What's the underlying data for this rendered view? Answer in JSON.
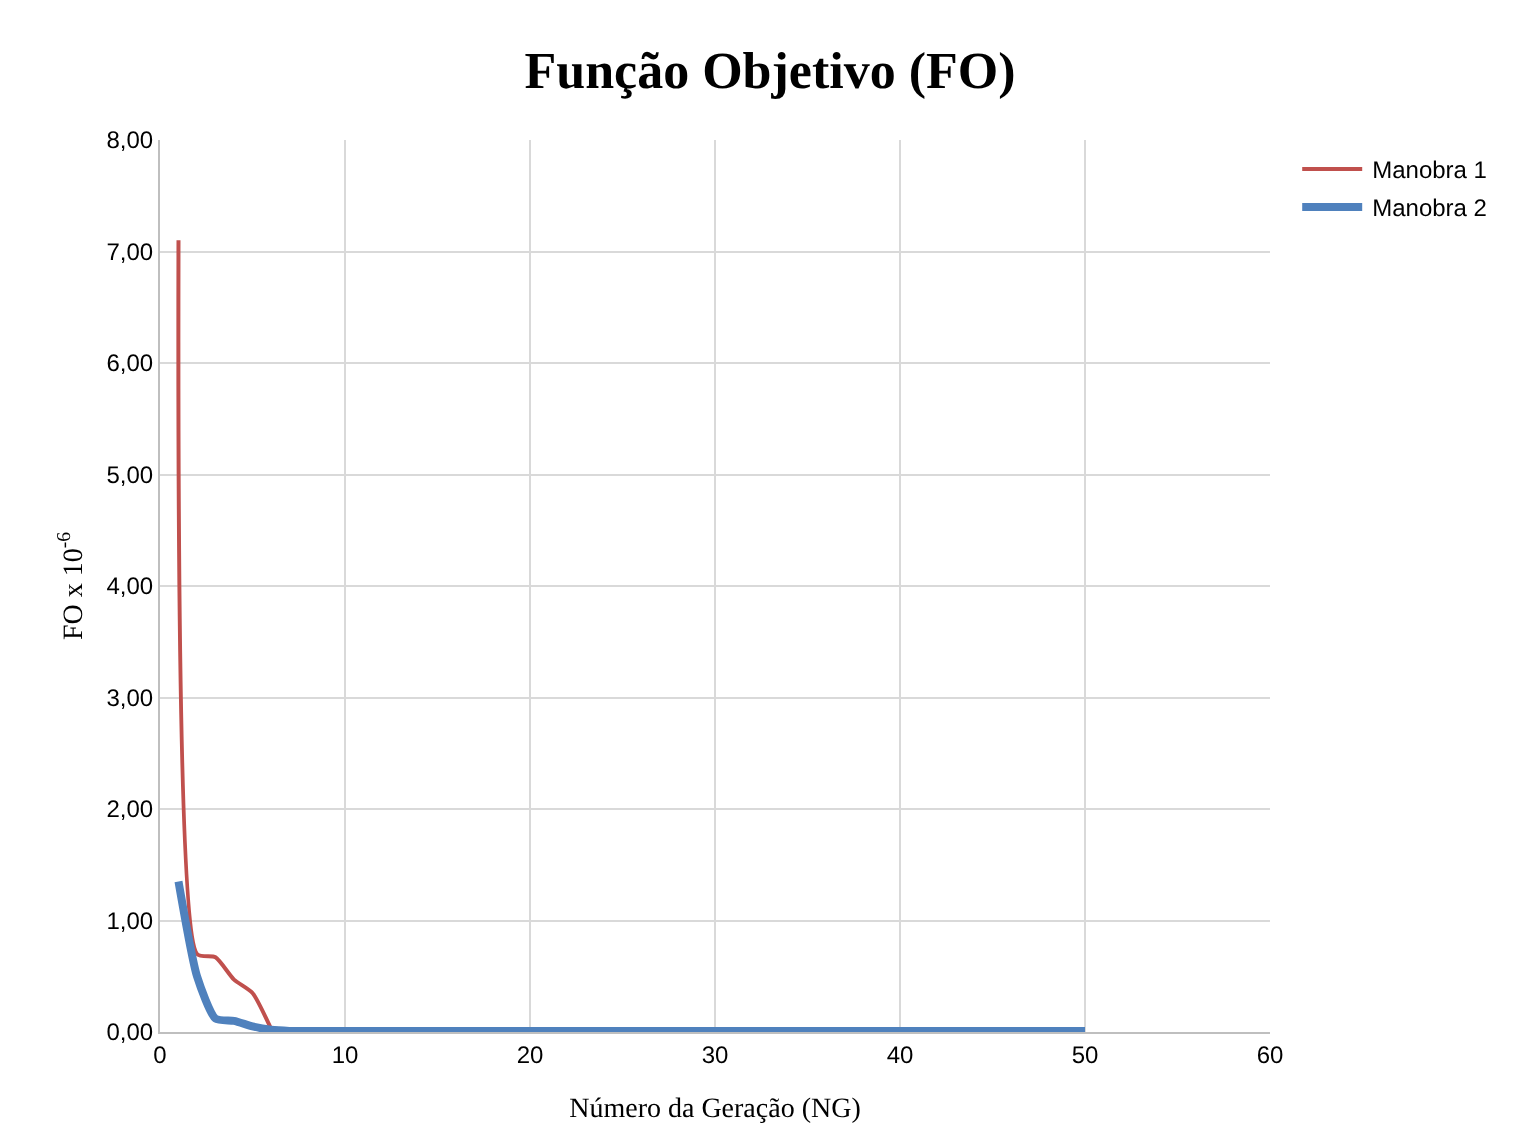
{
  "chart_data": {
    "type": "line",
    "title": "Função Objetivo (FO)",
    "xlabel": "Número da Geração (NG)",
    "ylabel": "FO x 10$^{-6}$",
    "series": [
      {
        "name": "Manobra 1",
        "color": "#c0504d",
        "x": [
          1,
          2,
          3,
          4,
          5,
          6
        ],
        "values": [
          7.1,
          0.7,
          0.67,
          0.47,
          0.35,
          0.03
        ]
      },
      {
        "name": "Manobra 2",
        "color": "#4f81bd",
        "x": [
          1,
          2,
          3,
          4,
          5,
          6,
          7,
          10,
          20,
          30,
          40,
          50
        ],
        "values": [
          1.35,
          0.5,
          0.12,
          0.1,
          0.05,
          0.02,
          0.01,
          0.01,
          0.01,
          0.01,
          0.01,
          0.01
        ]
      }
    ],
    "xlim": [
      0,
      60
    ],
    "xticks": [
      0,
      10,
      20,
      30,
      40,
      50,
      60
    ],
    "ylim": [
      0,
      8
    ],
    "yticks": [
      {
        "value": 0,
        "label": "0,00"
      },
      {
        "value": 1,
        "label": "1,00"
      },
      {
        "value": 2,
        "label": "2,00"
      },
      {
        "value": 3,
        "label": "3,00"
      },
      {
        "value": 4,
        "label": "4,00"
      },
      {
        "value": 5,
        "label": "5,00"
      },
      {
        "value": 6,
        "label": "6,00"
      },
      {
        "value": 7,
        "label": "7,00"
      },
      {
        "value": 8,
        "label": "8,00"
      }
    ],
    "grid": true,
    "legend": "top right",
    "marker": "none",
    "line_style": "solid"
  }
}
